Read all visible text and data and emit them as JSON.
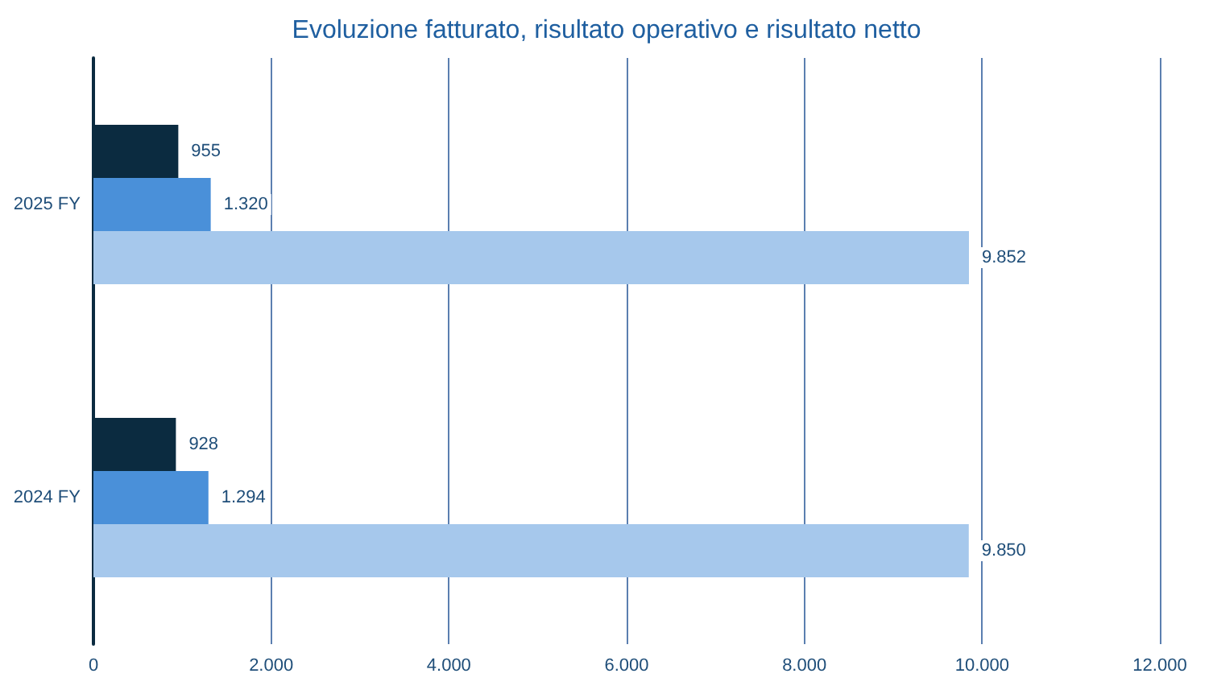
{
  "chart_data": {
    "type": "bar",
    "orientation": "horizontal",
    "title": "Evoluzione fatturato, risultato operativo e risultato netto",
    "categories": [
      "2025 FY",
      "2024 FY"
    ],
    "series": [
      {
        "color": "#0b2b40",
        "values": [
          955,
          928
        ],
        "value_labels": [
          "955",
          "928"
        ]
      },
      {
        "color": "#4a90d9",
        "values": [
          1320,
          1294
        ],
        "value_labels": [
          "1.320",
          "1.294"
        ]
      },
      {
        "color": "#a6c8ec",
        "values": [
          9852,
          9850
        ],
        "value_labels": [
          "9.852",
          "9.850"
        ]
      }
    ],
    "xlim": [
      0,
      12000
    ],
    "xticks": [
      0,
      {
        "value": 2000,
        "label": "2.000"
      },
      {
        "value": 4000,
        "label": "4.000"
      },
      {
        "value": 6000,
        "label": "6.000"
      },
      {
        "value": 8000,
        "label": "8.000"
      },
      {
        "value": 10000,
        "label": "10.000"
      },
      {
        "value": 12000,
        "label": "12.000"
      }
    ],
    "grid": "x"
  }
}
